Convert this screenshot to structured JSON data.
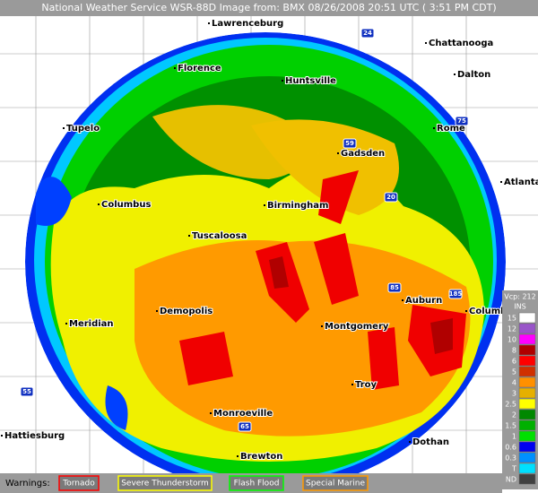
{
  "header": {
    "title": "National Weather Service WSR-88D Image from: BMX 08/26/2008 20:51 UTC ( 3:51 PM CDT)"
  },
  "cities": [
    "Lawrenceburg",
    "Chattanooga",
    "Florence",
    "Huntsville",
    "Dalton",
    "Tupelo",
    "Rome",
    "Gadsden",
    "Atlanta",
    "Columbus",
    "Birmingham",
    "Tuscaloosa",
    "Auburn",
    "Columbus",
    "Meridian",
    "Demopolis",
    "Montgomery",
    "Troy",
    "Monroeville",
    "Hattiesburg",
    "Dothan",
    "Brewton"
  ],
  "highways": [
    "24",
    "75",
    "59",
    "20",
    "185",
    "85",
    "65",
    "55"
  ],
  "legend": {
    "vcp": "Vcp: 212",
    "units": "INS",
    "items": [
      {
        "label": "15",
        "color": "#ffffff"
      },
      {
        "label": "12",
        "color": "#9955c9"
      },
      {
        "label": "10",
        "color": "#ff00ff"
      },
      {
        "label": "8",
        "color": "#b00000"
      },
      {
        "label": "6",
        "color": "#ff0000"
      },
      {
        "label": "5",
        "color": "#d03000"
      },
      {
        "label": "4",
        "color": "#ff9000"
      },
      {
        "label": "3",
        "color": "#e6b000"
      },
      {
        "label": "2.5",
        "color": "#ffff00"
      },
      {
        "label": "2",
        "color": "#008800"
      },
      {
        "label": "1.5",
        "color": "#00b000"
      },
      {
        "label": "1",
        "color": "#00e000"
      },
      {
        "label": "0.6",
        "color": "#0000f0"
      },
      {
        "label": "0.3",
        "color": "#0090ff"
      },
      {
        "label": "T",
        "color": "#00e0ff"
      },
      {
        "label": "ND",
        "color": "#404040"
      }
    ]
  },
  "warnings": {
    "label": "Warnings:",
    "items": [
      {
        "label": "Tornado",
        "color": "#ff0000"
      },
      {
        "label": "Severe Thunderstorm",
        "color": "#ffff00"
      },
      {
        "label": "Flash Flood",
        "color": "#00ff00"
      },
      {
        "label": "Special Marine",
        "color": "#ff9900"
      }
    ]
  }
}
